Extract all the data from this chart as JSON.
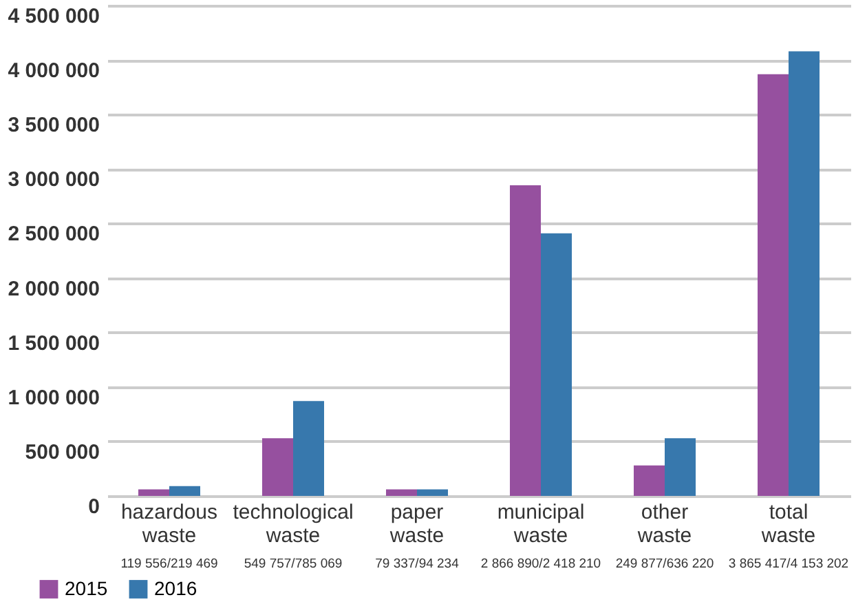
{
  "chart_data": {
    "type": "bar",
    "categories": [
      "hazardous waste",
      "technological waste",
      "paper waste",
      "municipal waste",
      "other waste",
      "total waste"
    ],
    "series": [
      {
        "name": "2015",
        "color": "#96509f",
        "values": [
          60000,
          530000,
          60000,
          2850000,
          280000,
          3870000
        ]
      },
      {
        "name": "2016",
        "color": "#3778ad",
        "values": [
          90000,
          870000,
          60000,
          2410000,
          530000,
          4080000
        ]
      }
    ],
    "ylim": [
      0,
      4500000
    ],
    "yticks": [
      {
        "value": 0,
        "label": "0"
      },
      {
        "value": 500000,
        "label": "500 000"
      },
      {
        "value": 1000000,
        "label": "1 000 000"
      },
      {
        "value": 1500000,
        "label": "1 500 000"
      },
      {
        "value": 2000000,
        "label": "2 000 000"
      },
      {
        "value": 2500000,
        "label": "2 500 000"
      },
      {
        "value": 3000000,
        "label": "3 000 000"
      },
      {
        "value": 3500000,
        "label": "3 500 000"
      },
      {
        "value": 4000000,
        "label": "4 000 000"
      },
      {
        "value": 4500000,
        "label": "4 500 000"
      }
    ],
    "annotations": [
      "119 556/219 469",
      "549 757/785 069",
      "79 337/94 234",
      "2 866 890/2 418 210",
      "249 877/636 220",
      "3 865 417/4 153 202"
    ],
    "grid": "y",
    "legend": "bottom left"
  }
}
